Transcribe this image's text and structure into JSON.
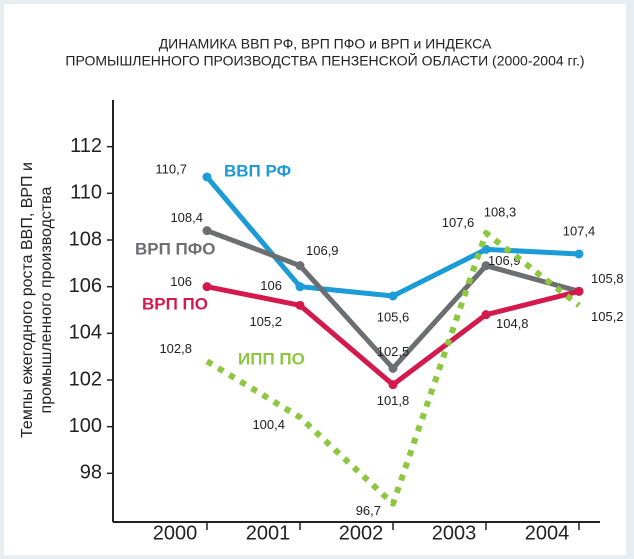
{
  "chart_data": {
    "type": "line",
    "title": [
      "ДИНАМИКА ВВП РФ, ВРП ПФО и ВРП и ИНДЕКСА",
      "ПРОМЫШЛЕННОГО ПРОИЗВОДСТВА ПЕНЗЕНСКОЙ ОБЛАСТИ (2000-2004 гг.)"
    ],
    "ylabel": [
      "Темпы ежегодного роста ВВП, ВРП и",
      "промышленного производства"
    ],
    "categories": [
      "2000",
      "2001",
      "2002",
      "2003",
      "2004"
    ],
    "ylim": [
      96,
      114
    ],
    "yticks": [
      98,
      100,
      102,
      104,
      106,
      108,
      110,
      112
    ],
    "series": [
      {
        "name": "ВВП РФ",
        "color": "#1b9bd7",
        "values": [
          110.7,
          106,
          105.6,
          107.6,
          107.4
        ],
        "value_labels": [
          "110,7",
          "106",
          "105,6",
          "107,6",
          "107,4"
        ]
      },
      {
        "name": "ВРП ПФО",
        "color": "#6d6e71",
        "values": [
          108.4,
          106.9,
          102.5,
          106.9,
          105.8
        ],
        "value_labels": [
          "108,4",
          "106,9",
          "102,5",
          "106,9",
          "105,8"
        ]
      },
      {
        "name": "ВРП ПО",
        "color": "#d41a4c",
        "values": [
          106,
          105.2,
          101.8,
          104.8,
          105.8
        ],
        "value_labels": [
          "106",
          "105,2",
          "101,8",
          "104,8",
          null
        ]
      },
      {
        "name": "ИПП ПО",
        "color": "#8dc63f",
        "dashed": true,
        "values": [
          102.8,
          100.4,
          96.7,
          108.3,
          105.2
        ],
        "value_labels": [
          "102,8",
          "100,4",
          "96,7",
          "108,3",
          "105,2"
        ]
      }
    ]
  }
}
